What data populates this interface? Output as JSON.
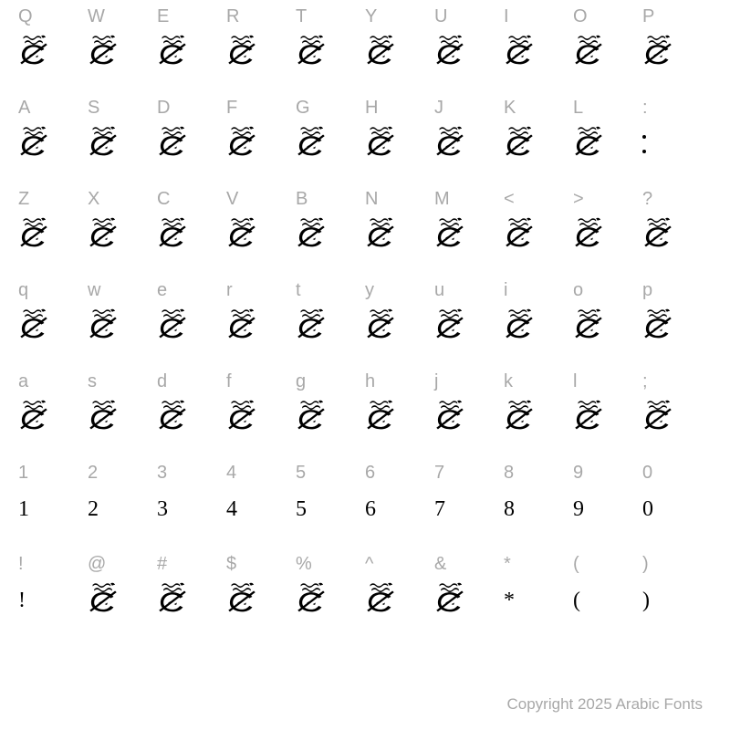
{
  "copyright": "Copyright 2025 Arabic Fonts",
  "rows": [
    {
      "keys": [
        "Q",
        "W",
        "E",
        "R",
        "T",
        "Y",
        "U",
        "I",
        "O",
        "P"
      ],
      "glyphKind": [
        "svg",
        "svg",
        "svg",
        "svg",
        "svg",
        "svg",
        "svg",
        "svg",
        "svg",
        "svg"
      ],
      "glyphText": [
        "",
        "",
        "",
        "",
        "",
        "",
        "",
        "",
        "",
        ""
      ]
    },
    {
      "keys": [
        "A",
        "S",
        "D",
        "F",
        "G",
        "H",
        "J",
        "K",
        "L",
        ":"
      ],
      "glyphKind": [
        "svg",
        "svg",
        "svg",
        "svg",
        "svg",
        "svg",
        "svg",
        "svg",
        "svg",
        "colon"
      ],
      "glyphText": [
        "",
        "",
        "",
        "",
        "",
        "",
        "",
        "",
        "",
        ""
      ]
    },
    {
      "keys": [
        "Z",
        "X",
        "C",
        "V",
        "B",
        "N",
        "M",
        "<",
        ">",
        "?"
      ],
      "glyphKind": [
        "svg",
        "svg",
        "svg",
        "svg",
        "svg",
        "svg",
        "svg",
        "svg",
        "svg",
        "svg"
      ],
      "glyphText": [
        "",
        "",
        "",
        "",
        "",
        "",
        "",
        "",
        "",
        ""
      ]
    },
    {
      "keys": [
        "q",
        "w",
        "e",
        "r",
        "t",
        "y",
        "u",
        "i",
        "o",
        "p"
      ],
      "glyphKind": [
        "svg",
        "svg",
        "svg",
        "svg",
        "svg",
        "svg",
        "svg",
        "svg",
        "svg",
        "svg"
      ],
      "glyphText": [
        "",
        "",
        "",
        "",
        "",
        "",
        "",
        "",
        "",
        ""
      ]
    },
    {
      "keys": [
        "a",
        "s",
        "d",
        "f",
        "g",
        "h",
        "j",
        "k",
        "l",
        ";"
      ],
      "glyphKind": [
        "svg",
        "svg",
        "svg",
        "svg",
        "svg",
        "svg",
        "svg",
        "svg",
        "svg",
        "svg"
      ],
      "glyphText": [
        "",
        "",
        "",
        "",
        "",
        "",
        "",
        "",
        "",
        ""
      ]
    },
    {
      "keys": [
        "1",
        "2",
        "3",
        "4",
        "5",
        "6",
        "7",
        "8",
        "9",
        "0"
      ],
      "glyphKind": [
        "text",
        "text",
        "text",
        "text",
        "text",
        "text",
        "text",
        "text",
        "text",
        "text"
      ],
      "glyphText": [
        "1",
        "2",
        "3",
        "4",
        "5",
        "6",
        "7",
        "8",
        "9",
        "0"
      ]
    },
    {
      "keys": [
        "!",
        "@",
        "#",
        "$",
        "%",
        "^",
        "&",
        "*",
        "(",
        ")"
      ],
      "glyphKind": [
        "text",
        "svg",
        "svg",
        "svg",
        "svg",
        "svg",
        "svg",
        "text",
        "text",
        "text"
      ],
      "glyphText": [
        "!",
        "",
        "",
        "",
        "",
        "",
        "",
        "*",
        "(",
        ")"
      ]
    }
  ],
  "colors": {
    "background": "#ffffff",
    "label": "#a8a8a8",
    "glyph": "#000000"
  },
  "label_fontsize": 20,
  "glyph_text_fontsize": 24,
  "copyright_fontsize": 17,
  "grid": {
    "cols": 10,
    "rows": 7
  }
}
